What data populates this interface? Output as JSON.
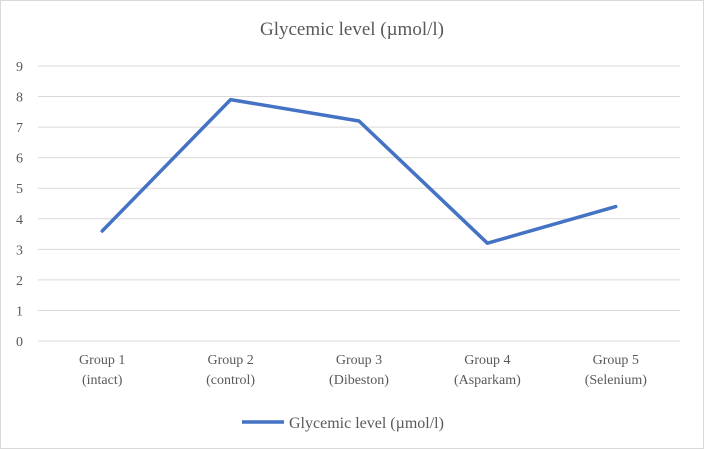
{
  "chart_data": {
    "type": "line",
    "title": "Glycemic level (µmol/l)",
    "xlabel": "",
    "ylabel": "",
    "categories": [
      [
        "Group 1",
        "(intact)"
      ],
      [
        "Group 2",
        "(control)"
      ],
      [
        "Group 3",
        "(Dibeston)"
      ],
      [
        "Group 4",
        "(Asparkam)"
      ],
      [
        "Group 5",
        "(Selenium)"
      ]
    ],
    "series": [
      {
        "name": "Glycemic level (µmol/l)",
        "color": "#4472c4",
        "values": [
          3.6,
          7.9,
          7.2,
          3.2,
          4.4
        ]
      }
    ],
    "ylim": [
      0,
      9
    ],
    "yticks": [
      0,
      1,
      2,
      3,
      4,
      5,
      6,
      7,
      8,
      9
    ],
    "grid": true,
    "legend": "bottom"
  }
}
